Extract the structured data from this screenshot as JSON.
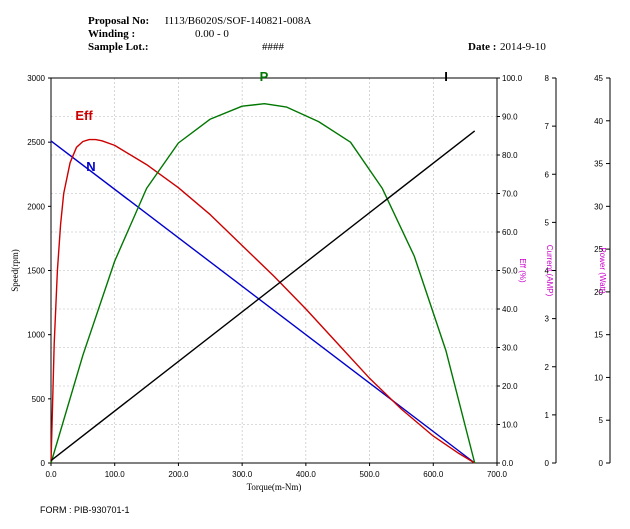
{
  "header": {
    "proposal_label": "Proposal No:",
    "proposal_value": "I113/B6020S/SOF-140821-008A",
    "winding_label": "Winding :",
    "winding_value": "0.00   -   0",
    "lot_label": "Sample Lot.:",
    "lot_value": "####",
    "date_label": "Date :",
    "date_value": "2014-9-10"
  },
  "footer": {
    "form": "FORM : PIB-930701-1"
  },
  "chart_data": {
    "type": "line",
    "xlabel": "Torque(m-Nm)",
    "xlim": [
      0,
      700
    ],
    "x_ticks": [
      "0.0",
      "100.0",
      "200.0",
      "300.0",
      "400.0",
      "500.0",
      "600.0",
      "700.0"
    ],
    "axes": {
      "speed": {
        "label": "Speed(rpm)",
        "ylim": [
          0,
          3000
        ],
        "ticks": [
          "0",
          "500",
          "1000",
          "1500",
          "2000",
          "2500",
          "3000"
        ]
      },
      "eff": {
        "label": "Eff (%)",
        "ylim": [
          0,
          100
        ],
        "ticks": [
          "0.0",
          "10.0",
          "20.0",
          "30.0",
          "40.0",
          "50.0",
          "60.0",
          "70.0",
          "80.0",
          "90.0",
          "100.0"
        ]
      },
      "current": {
        "label": "Current (AMP)",
        "ylim": [
          0,
          8
        ],
        "ticks": [
          "0",
          "1",
          "2",
          "3",
          "4",
          "5",
          "6",
          "7",
          "8"
        ]
      },
      "power": {
        "label": "Power (Watt)",
        "ylim": [
          0,
          45
        ],
        "ticks": [
          "0",
          "5",
          "10",
          "15",
          "20",
          "25",
          "30",
          "35",
          "40",
          "45"
        ]
      }
    },
    "grid": true,
    "series": [
      {
        "name": "N",
        "axis": "speed",
        "color": "#0000cc",
        "x": [
          0,
          665
        ],
        "y": [
          2510,
          0
        ]
      },
      {
        "name": "Eff",
        "axis": "eff",
        "color": "#cc0000",
        "x": [
          0,
          5,
          10,
          15,
          20,
          30,
          40,
          50,
          60,
          70,
          80,
          100,
          150,
          200,
          250,
          300,
          350,
          400,
          450,
          500,
          550,
          600,
          640,
          665
        ],
        "y": [
          0,
          31,
          50,
          62,
          70,
          78,
          82,
          83.5,
          84,
          84,
          83.7,
          82.5,
          77.5,
          71.5,
          64.5,
          56.5,
          48.5,
          40,
          31,
          22,
          14,
          7,
          2.5,
          0
        ]
      },
      {
        "name": "P",
        "axis": "power",
        "color": "#007700",
        "x": [
          0,
          50,
          100,
          150,
          200,
          250,
          300,
          335,
          370,
          420,
          470,
          520,
          570,
          620,
          665
        ],
        "y": [
          0,
          12.6,
          23.6,
          32.1,
          37.4,
          40.2,
          41.7,
          42,
          41.6,
          39.9,
          37.5,
          32.1,
          24.2,
          13.1,
          0
        ]
      },
      {
        "name": "I",
        "axis": "current",
        "color": "#000000",
        "x": [
          0,
          665
        ],
        "y": [
          0.05,
          6.9
        ]
      }
    ]
  }
}
